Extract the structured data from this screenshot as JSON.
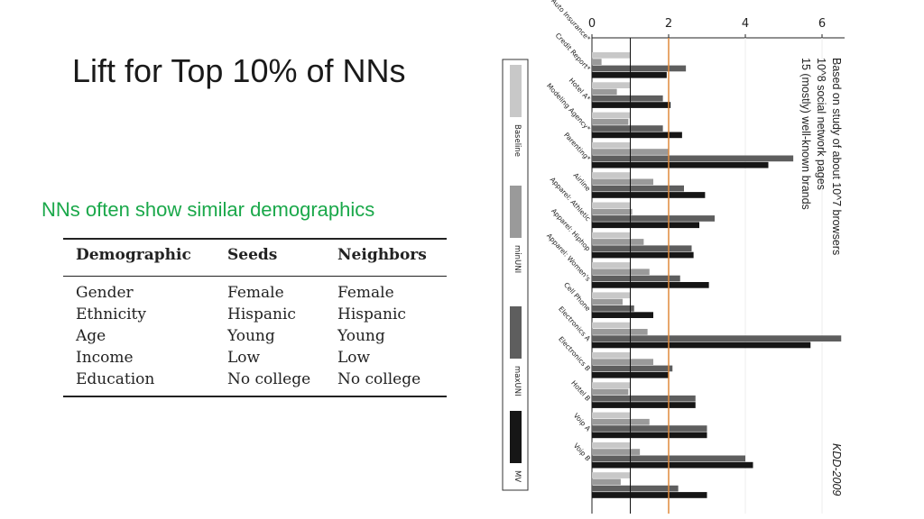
{
  "slide": {
    "title": "Lift for Top 10% of NNs",
    "subtitle": "NNs often show similar demographics"
  },
  "table": {
    "headers": [
      "Demographic",
      "Seeds",
      "Neighbors"
    ],
    "rows": [
      [
        "Gender",
        "Female",
        "Female"
      ],
      [
        "Ethnicity",
        "Hispanic",
        "Hispanic"
      ],
      [
        "Age",
        "Young",
        "Young"
      ],
      [
        "Income",
        "Low",
        "Low"
      ],
      [
        "Education",
        "No college",
        "No college"
      ]
    ]
  },
  "chart_data": {
    "type": "bar",
    "orientation": "horizontal",
    "categories": [
      "Auto Insurance*",
      "Credit Report*",
      "Hotel A*",
      "Modeling Agency*",
      "Parenting*",
      "Airline",
      "Apparel: Athletic",
      "Apparel: Hiphop",
      "Apparel: Women's",
      "Cell Phone",
      "Electronics A",
      "Electronics B",
      "Hotel B",
      "Voip A",
      "Voip B"
    ],
    "series": [
      {
        "name": "Baseline",
        "color": "#c8c8c8",
        "values": [
          1.0,
          1.0,
          1.0,
          1.0,
          1.0,
          1.0,
          1.0,
          1.0,
          1.0,
          1.0,
          1.0,
          1.0,
          1.0,
          1.0,
          1.0
        ]
      },
      {
        "name": "minUNI",
        "color": "#9a9a9a",
        "values": [
          0.25,
          0.65,
          0.95,
          2.0,
          1.6,
          1.05,
          1.35,
          1.5,
          0.8,
          1.45,
          1.6,
          0.95,
          1.5,
          1.25,
          0.75
        ]
      },
      {
        "name": "maxUNI",
        "color": "#5e5e5e",
        "values": [
          2.45,
          1.85,
          1.85,
          5.25,
          2.4,
          3.2,
          2.6,
          2.3,
          1.1,
          6.5,
          2.1,
          2.7,
          3.0,
          4.0,
          2.25
        ]
      },
      {
        "name": "MV",
        "color": "#161616",
        "values": [
          1.95,
          2.05,
          2.35,
          4.6,
          2.95,
          2.8,
          2.65,
          3.05,
          1.6,
          5.7,
          2.0,
          2.7,
          3.0,
          4.2,
          3.0
        ]
      }
    ],
    "xlim": [
      0,
      6.5
    ],
    "xticks": [
      "0",
      "2",
      "4",
      "6"
    ],
    "reference_lines": [
      1,
      2
    ],
    "legend_position": "left",
    "annotations": [
      "Based on study of about 10^7 browsers",
      "10^8 social network pages",
      "15 (mostly) well-known brands"
    ],
    "source": "KDD-2009"
  }
}
